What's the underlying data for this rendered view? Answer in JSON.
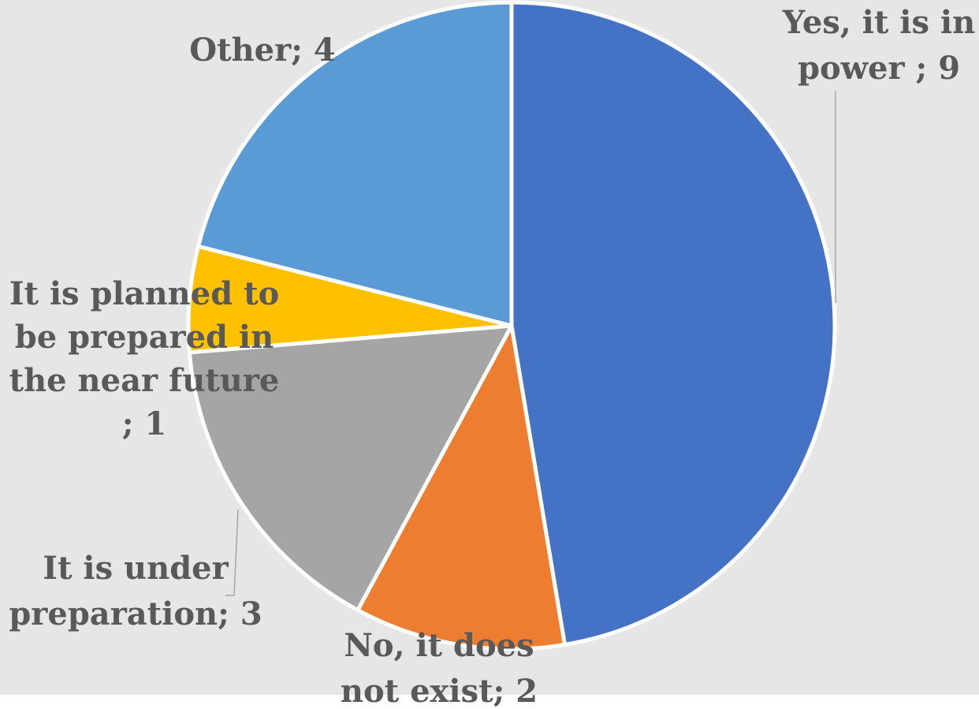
{
  "chart_data": {
    "type": "pie",
    "title": "",
    "slices": [
      {
        "name": "Yes, it is in power",
        "value": 9,
        "color": "#4472c4",
        "label_lines": [
          "Yes, it is in",
          "power ; 9"
        ]
      },
      {
        "name": "No, it does not exist",
        "value": 2,
        "color": "#ed7d31",
        "label_lines": [
          "No, it does",
          "not exist; 2"
        ]
      },
      {
        "name": "It is under preparation",
        "value": 3,
        "color": "#a5a5a5",
        "label_lines": [
          "It is under",
          "preparation; 3"
        ]
      },
      {
        "name": "It is planned to be prepared in the near future",
        "value": 1,
        "color": "#ffc000",
        "label_lines": [
          "It is planned to",
          "be prepared in",
          "the near future",
          "; 1"
        ]
      },
      {
        "name": "Other",
        "value": 4,
        "color": "#5b9bd5",
        "label_lines": [
          "Other; 4"
        ]
      }
    ],
    "legend": "none",
    "data_labels": "category; value"
  },
  "colors": {
    "chart_background": "#e7e6e6",
    "label_text": "#595959",
    "leader_line": "#a6a6a6"
  }
}
